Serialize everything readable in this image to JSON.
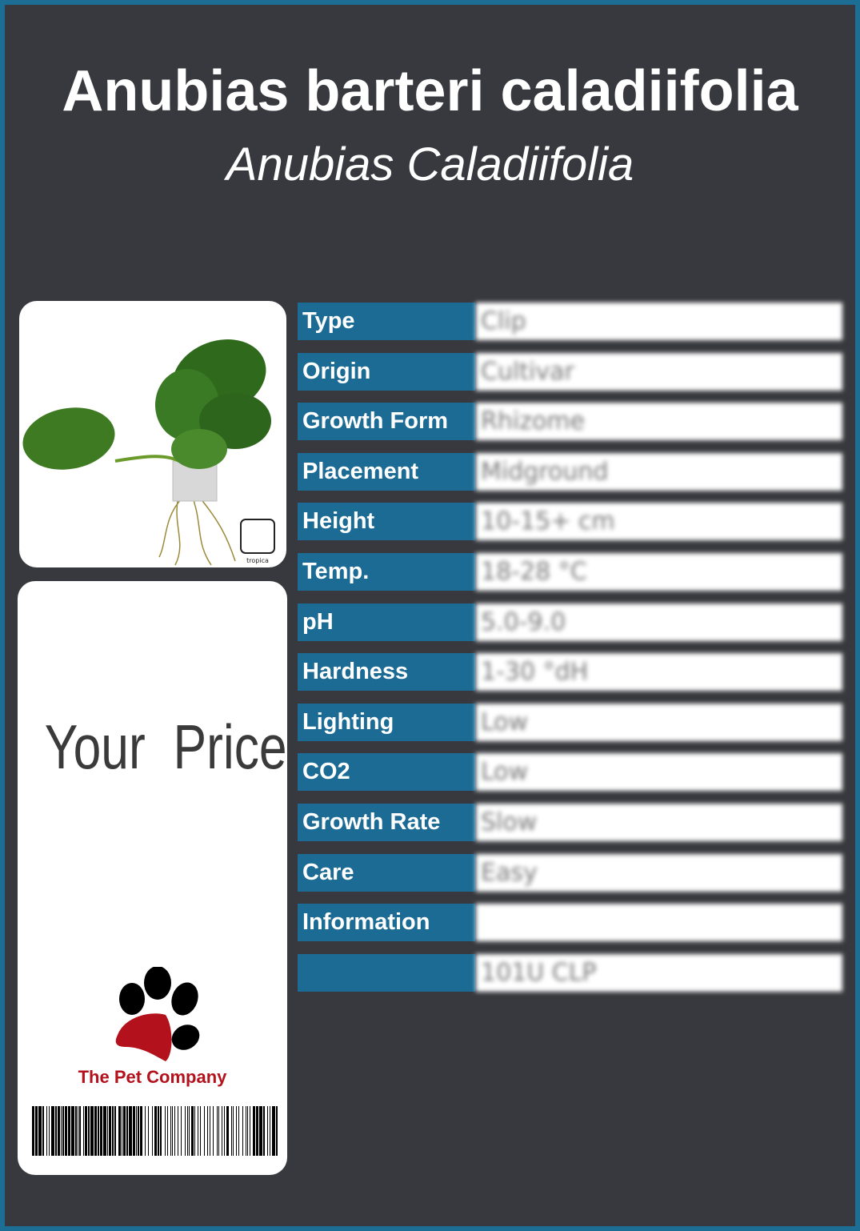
{
  "header": {
    "title": "Anubias barteri caladiifolia",
    "subtitle": "Anubias Caladiifolia"
  },
  "price_card": {
    "label": "Your  Price",
    "brand": "The Pet Company",
    "logo_colors": {
      "toes": "#000000",
      "pad": "#b3121c"
    }
  },
  "plant_image": {
    "alt": "plant",
    "badge": "tropica"
  },
  "specs": [
    {
      "label": "Type",
      "value": "Clip"
    },
    {
      "label": "Origin",
      "value": "Cultivar"
    },
    {
      "label": "Growth Form",
      "value": "Rhizome"
    },
    {
      "label": "Placement",
      "value": "Midground"
    },
    {
      "label": "Height",
      "value": "10-15+ cm"
    },
    {
      "label": "Temp.",
      "value": "18-28 °C"
    },
    {
      "label": "pH",
      "value": "5.0-9.0"
    },
    {
      "label": "Hardness",
      "value": "1-30 °dH"
    },
    {
      "label": "Lighting",
      "value": "Low"
    },
    {
      "label": "CO2",
      "value": "Low"
    },
    {
      "label": "Growth Rate",
      "value": "Slow"
    },
    {
      "label": "Care",
      "value": "Easy"
    },
    {
      "label": "Information",
      "value": ""
    },
    {
      "label": "",
      "value": "101U CLP"
    }
  ],
  "colors": {
    "background": "#38393e",
    "border": "#1d6e95",
    "label_bg": "#1b6b95"
  }
}
